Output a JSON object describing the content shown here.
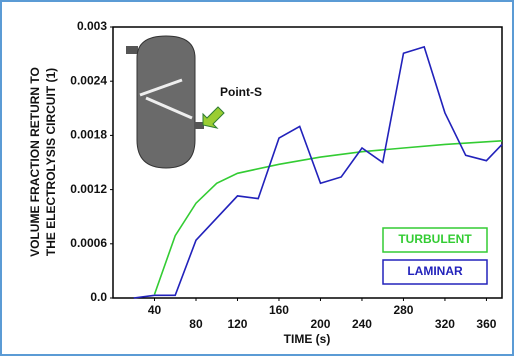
{
  "chart_data": {
    "type": "line",
    "y_label": [
      "VOLUME FRACTION RETURN TO",
      "THE ELECTROLYSIS CIRCUIT (1)"
    ],
    "x_label": "TIME (s)",
    "annotation": "Point-S",
    "xlim": [
      0,
      375
    ],
    "xticks": [
      40,
      80,
      120,
      160,
      200,
      240,
      280,
      320,
      360
    ],
    "ylim": [
      0,
      0.003
    ],
    "yticks": [
      {
        "value": 0,
        "label": "0.0"
      },
      0.0006,
      0.0012,
      0.0018,
      0.0024,
      0.003
    ],
    "series": [
      {
        "name": "TURBULENT",
        "color": "#33cc33",
        "x": [
          40,
          60,
          80,
          100,
          120,
          160,
          200,
          240,
          280,
          320,
          375
        ],
        "values": [
          4e-05,
          0.00069,
          0.00105,
          0.00127,
          0.00138,
          0.00148,
          0.00156,
          0.00162,
          0.00166,
          0.0017,
          0.00174
        ]
      },
      {
        "name": "LAMINAR",
        "color": "#2222bb",
        "x": [
          20,
          40,
          60,
          80,
          120,
          140,
          160,
          180,
          200,
          220,
          240,
          260,
          280,
          300,
          320,
          340,
          360,
          375
        ],
        "values": [
          0,
          3e-05,
          3e-05,
          0.00064,
          0.00113,
          0.0011,
          0.00177,
          0.0019,
          0.00127,
          0.00134,
          0.00166,
          0.0015,
          0.00271,
          0.00278,
          0.00205,
          0.00158,
          0.00152,
          0.0017
        ]
      }
    ]
  }
}
